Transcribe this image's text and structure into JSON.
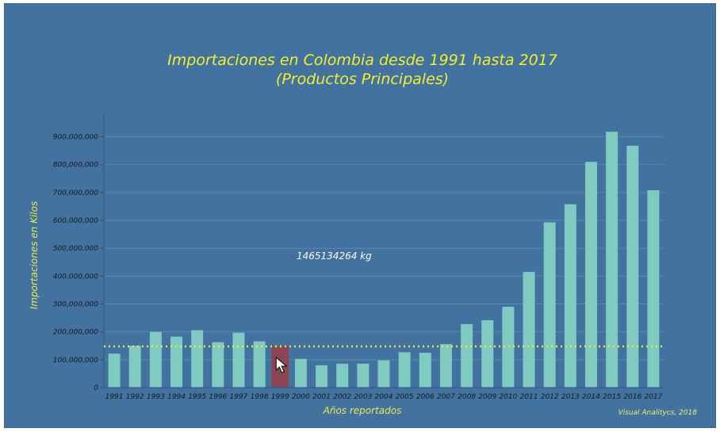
{
  "chart_data": {
    "type": "bar",
    "title_line1": "Importaciones en Colombia desde 1991 hasta 2017",
    "title_line2": "(Productos Principales)",
    "xlabel": "Años reportados",
    "ylabel": "Importaciones en Kilos",
    "ylim": [
      0,
      950000000
    ],
    "yticks": [
      0,
      100000000,
      200000000,
      300000000,
      400000000,
      500000000,
      600000000,
      700000000,
      800000000,
      900000000
    ],
    "ytick_labels": [
      "0",
      "100,000,000",
      "200,000,000",
      "300,000,000",
      "400,000,000",
      "500,000,000",
      "600,000,000",
      "700,000,000",
      "800,000,000",
      "900,000,000"
    ],
    "categories": [
      "1991",
      "1992",
      "1993",
      "1994",
      "1995",
      "1996",
      "1997",
      "1998",
      "1999",
      "2000",
      "2001",
      "2002",
      "2003",
      "2004",
      "2005",
      "2006",
      "2007",
      "2008",
      "2009",
      "2010",
      "2011",
      "2012",
      "2013",
      "2014",
      "2015",
      "2016",
      "2017"
    ],
    "values": [
      122000000,
      150000000,
      200000000,
      183000000,
      206000000,
      163000000,
      197000000,
      166000000,
      148000000,
      103000000,
      80000000,
      86000000,
      86000000,
      98000000,
      127000000,
      125000000,
      156000000,
      228000000,
      242000000,
      290000000,
      415000000,
      593000000,
      658000000,
      810000000,
      918000000,
      868000000,
      708000000
    ],
    "highlighted_category": "1999",
    "reference_line_value": 148000000,
    "tooltip_text": "1465134264 kg",
    "credit": "Visual Analitycs, 2018",
    "colors": {
      "background": "#4172a0",
      "bar": "#7fcbc2",
      "bar_highlight": "#8b4553",
      "reference_line": "#f0e23a",
      "title": "#f5ee2a",
      "axis_label": "#e8e84a",
      "gridline": "#5a87b0"
    },
    "grid": true
  }
}
